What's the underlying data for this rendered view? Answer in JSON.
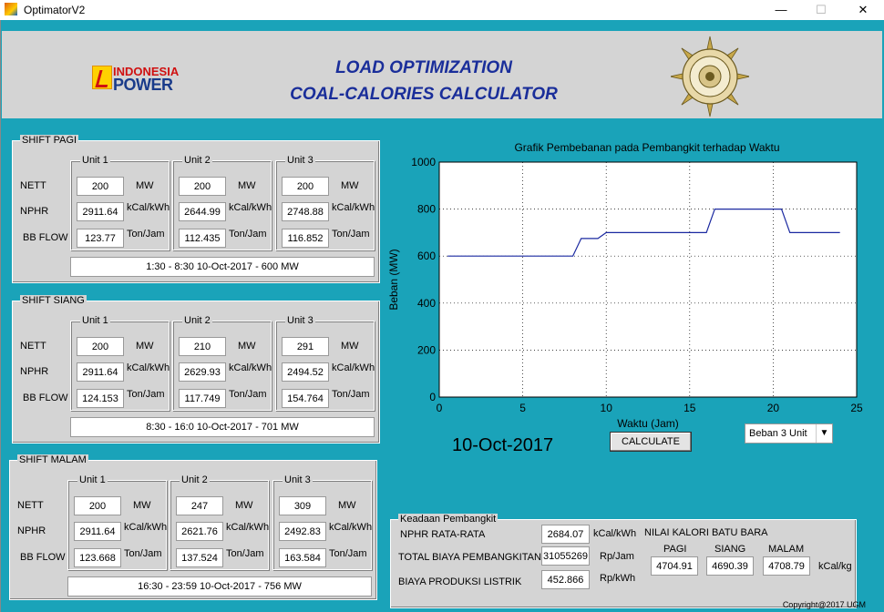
{
  "window": {
    "title": "OptimatorV2",
    "min": "—",
    "max": "☐",
    "close": "✕"
  },
  "header": {
    "logo_line1": "INDONESIA",
    "logo_line2": "POWER",
    "title_line1": "LOAD OPTIMIZATION",
    "title_line2": "COAL-CALORIES CALCULATOR"
  },
  "row_labels": {
    "nett": "NETT",
    "nphr": "NPHR",
    "bbflow": "BB FLOW"
  },
  "units": {
    "mw": "MW",
    "kcal": "kCal/kWh",
    "ton": "Ton/Jam"
  },
  "shifts": [
    {
      "title": "SHIFT PAGI",
      "units": [
        {
          "name": "Unit 1",
          "nett": "200",
          "nphr": "2911.64",
          "bbflow": "123.77"
        },
        {
          "name": "Unit 2",
          "nett": "200",
          "nphr": "2644.99",
          "bbflow": "112.435"
        },
        {
          "name": "Unit 3",
          "nett": "200",
          "nphr": "2748.88",
          "bbflow": "116.852"
        }
      ],
      "summary": "1:30 - 8:30  10-Oct-2017 - 600 MW"
    },
    {
      "title": "SHIFT SIANG",
      "units": [
        {
          "name": "Unit 1",
          "nett": "200",
          "nphr": "2911.64",
          "bbflow": "124.153"
        },
        {
          "name": "Unit 2",
          "nett": "210",
          "nphr": "2629.93",
          "bbflow": "117.749"
        },
        {
          "name": "Unit 3",
          "nett": "291",
          "nphr": "2494.52",
          "bbflow": "154.764"
        }
      ],
      "summary": "8:30 - 16:0  10-Oct-2017 - 701 MW"
    },
    {
      "title": "SHIFT MALAM",
      "units": [
        {
          "name": "Unit 1",
          "nett": "200",
          "nphr": "2911.64",
          "bbflow": "123.668"
        },
        {
          "name": "Unit 2",
          "nett": "247",
          "nphr": "2621.76",
          "bbflow": "137.524"
        },
        {
          "name": "Unit 3",
          "nett": "309",
          "nphr": "2492.83",
          "bbflow": "163.584"
        }
      ],
      "summary": "16:30 - 23:59  10-Oct-2017 - 756 MW"
    }
  ],
  "chart_data": {
    "type": "line",
    "title": "Grafik Pembebanan pada Pembangkit terhadap Waktu",
    "xlabel": "Waktu (Jam)",
    "ylabel": "Beban (MW)",
    "xlim": [
      0,
      25
    ],
    "ylim": [
      0,
      1000
    ],
    "xticks": [
      0,
      5,
      10,
      15,
      20,
      25
    ],
    "yticks": [
      0,
      200,
      400,
      600,
      800,
      1000
    ],
    "grid": true,
    "line_color": "#1a28a0",
    "series": [
      {
        "x": [
          0.5,
          8.0,
          8.5,
          9.5,
          10.0,
          16.0,
          16.5,
          20.5,
          21.0,
          24.0
        ],
        "y": [
          600,
          600,
          675,
          675,
          700,
          700,
          800,
          800,
          700,
          700
        ]
      }
    ]
  },
  "date_display": "10-Oct-2017",
  "calculate_label": "CALCULATE",
  "beban_select": "Beban 3 Unit",
  "keadaan": {
    "title": "Keadaan Pembangkit",
    "nphr_label": "NPHR RATA-RATA",
    "nphr_value": "2684.07",
    "nphr_unit": "kCal/kWh",
    "biaya_label": "TOTAL BIAYA PEMBANGKITAN",
    "biaya_value": "31055269",
    "biaya_unit": "Rp/Jam",
    "produksi_label": "BIAYA PRODUKSI LISTRIK",
    "produksi_value": "452.866",
    "produksi_unit": "Rp/kWh",
    "kalori_title": "NILAI KALORI BATU BARA",
    "pagi_label": "PAGI",
    "siang_label": "SIANG",
    "malam_label": "MALAM",
    "pagi_value": "4704.91",
    "siang_value": "4690.39",
    "malam_value": "4708.79",
    "kalori_unit": "kCal/kg"
  },
  "copyright": "Copyright@2017 UGM"
}
